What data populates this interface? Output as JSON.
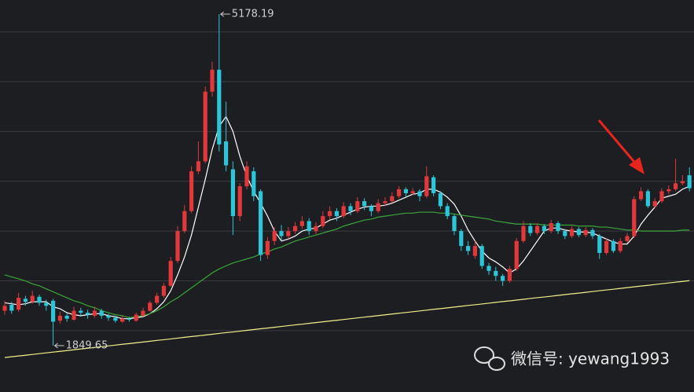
{
  "chart_data": {
    "type": "candlestick",
    "ohlc": [
      [
        2200,
        2300,
        2160,
        2250
      ],
      [
        2260,
        2290,
        2170,
        2200
      ],
      [
        2210,
        2380,
        2190,
        2330
      ],
      [
        2320,
        2350,
        2250,
        2290
      ],
      [
        2290,
        2400,
        2270,
        2350
      ],
      [
        2340,
        2360,
        2250,
        2280
      ],
      [
        2280,
        2310,
        2200,
        2250
      ],
      [
        2300,
        2320,
        1849.65,
        2090
      ],
      [
        2100,
        2190,
        2070,
        2150
      ],
      [
        2150,
        2170,
        2090,
        2120
      ],
      [
        2110,
        2240,
        2100,
        2200
      ],
      [
        2200,
        2230,
        2140,
        2180
      ],
      [
        2180,
        2210,
        2120,
        2160
      ],
      [
        2150,
        2240,
        2130,
        2200
      ],
      [
        2200,
        2220,
        2120,
        2150
      ],
      [
        2150,
        2170,
        2100,
        2130
      ],
      [
        2130,
        2150,
        2080,
        2100
      ],
      [
        2090,
        2150,
        2080,
        2120
      ],
      [
        2120,
        2140,
        2090,
        2110
      ],
      [
        2100,
        2180,
        2090,
        2160
      ],
      [
        2150,
        2230,
        2140,
        2200
      ],
      [
        2200,
        2300,
        2190,
        2280
      ],
      [
        2280,
        2380,
        2260,
        2350
      ],
      [
        2350,
        2480,
        2330,
        2450
      ],
      [
        2450,
        2740,
        2440,
        2700
      ],
      [
        2700,
        3050,
        2680,
        3000
      ],
      [
        3000,
        3260,
        2980,
        3200
      ],
      [
        3200,
        3650,
        3180,
        3600
      ],
      [
        3600,
        3900,
        3570,
        3700
      ],
      [
        3700,
        4450,
        3680,
        4400
      ],
      [
        4400,
        4700,
        4350,
        4620
      ],
      [
        4620,
        5178.19,
        3800,
        3870
      ],
      [
        3900,
        4300,
        3600,
        3660
      ],
      [
        3620,
        3700,
        2960,
        3150
      ],
      [
        3150,
        3480,
        3100,
        3450
      ],
      [
        3450,
        3700,
        3420,
        3650
      ],
      [
        3600,
        3640,
        3300,
        3350
      ],
      [
        3400,
        3420,
        2700,
        2760
      ],
      [
        2760,
        2940,
        2720,
        2900
      ],
      [
        2900,
        3040,
        2860,
        3000
      ],
      [
        3000,
        3060,
        2900,
        2950
      ],
      [
        2950,
        3040,
        2920,
        3000
      ],
      [
        3000,
        3090,
        2970,
        3050
      ],
      [
        3050,
        3150,
        3020,
        3100
      ],
      [
        3100,
        3130,
        2960,
        3000
      ],
      [
        3000,
        3090,
        2970,
        3050
      ],
      [
        3050,
        3200,
        3030,
        3150
      ],
      [
        3150,
        3250,
        3120,
        3200
      ],
      [
        3200,
        3230,
        3100,
        3150
      ],
      [
        3150,
        3290,
        3130,
        3250
      ],
      [
        3250,
        3280,
        3160,
        3200
      ],
      [
        3200,
        3340,
        3180,
        3300
      ],
      [
        3300,
        3330,
        3210,
        3250
      ],
      [
        3250,
        3270,
        3150,
        3200
      ],
      [
        3200,
        3320,
        3180,
        3280
      ],
      [
        3280,
        3340,
        3250,
        3300
      ],
      [
        3300,
        3390,
        3280,
        3350
      ],
      [
        3350,
        3450,
        3330,
        3420
      ],
      [
        3420,
        3440,
        3350,
        3380
      ],
      [
        3380,
        3430,
        3360,
        3400
      ],
      [
        3400,
        3420,
        3300,
        3350
      ],
      [
        3350,
        3650,
        3330,
        3550
      ],
      [
        3540,
        3560,
        3350,
        3380
      ],
      [
        3380,
        3400,
        3220,
        3250
      ],
      [
        3250,
        3280,
        3120,
        3150
      ],
      [
        3150,
        3170,
        2960,
        3000
      ],
      [
        3000,
        3020,
        2800,
        2850
      ],
      [
        2850,
        2900,
        2760,
        2800
      ],
      [
        2750,
        2900,
        2720,
        2850
      ],
      [
        2850,
        2870,
        2620,
        2650
      ],
      [
        2650,
        2680,
        2560,
        2600
      ],
      [
        2600,
        2640,
        2500,
        2550
      ],
      [
        2550,
        2570,
        2450,
        2500
      ],
      [
        2500,
        2650,
        2480,
        2620
      ],
      [
        2620,
        2930,
        2600,
        2900
      ],
      [
        2900,
        3100,
        2880,
        3050
      ],
      [
        3050,
        3080,
        2950,
        2980
      ],
      [
        2980,
        3080,
        2960,
        3050
      ],
      [
        3050,
        3070,
        2970,
        3000
      ],
      [
        3000,
        3110,
        2980,
        3080
      ],
      [
        3080,
        3100,
        2970,
        3000
      ],
      [
        3000,
        3020,
        2920,
        2950
      ],
      [
        2950,
        3050,
        2930,
        3020
      ],
      [
        3020,
        3040,
        2940,
        2960
      ],
      [
        2960,
        3040,
        2940,
        3010
      ],
      [
        3010,
        3030,
        2920,
        2950
      ],
      [
        2950,
        2970,
        2720,
        2780
      ],
      [
        2780,
        2930,
        2760,
        2900
      ],
      [
        2900,
        2920,
        2780,
        2800
      ],
      [
        2800,
        2930,
        2780,
        2900
      ],
      [
        2900,
        2980,
        2880,
        2950
      ],
      [
        2950,
        3350,
        2930,
        3320
      ],
      [
        3320,
        3440,
        3300,
        3400
      ],
      [
        3400,
        3420,
        3230,
        3250
      ],
      [
        3250,
        3330,
        3230,
        3300
      ],
      [
        3300,
        3430,
        3280,
        3400
      ],
      [
        3400,
        3460,
        3370,
        3420
      ],
      [
        3420,
        3727,
        3400,
        3480
      ],
      [
        3480,
        3560,
        3460,
        3500
      ],
      [
        3560,
        3640,
        3400,
        3430
      ]
    ],
    "up_color": "#e0383b",
    "down_color": "#2cc6d8",
    "lines": [
      {
        "color": "#ffffff",
        "values": [
          2280,
          2270,
          2260,
          2270,
          2290,
          2290,
          2290,
          2240,
          2220,
          2180,
          2160,
          2150,
          2160,
          2170,
          2170,
          2150,
          2140,
          2120,
          2120,
          2130,
          2140,
          2170,
          2220,
          2290,
          2400,
          2560,
          2740,
          2960,
          3240,
          3520,
          3820,
          4050,
          4150,
          4000,
          3750,
          3550,
          3400,
          3280,
          3150,
          3000,
          2900,
          2920,
          2950,
          3000,
          3020,
          3030,
          3070,
          3110,
          3130,
          3160,
          3190,
          3220,
          3240,
          3250,
          3250,
          3260,
          3280,
          3310,
          3340,
          3370,
          3380,
          3420,
          3420,
          3390,
          3340,
          3270,
          3150,
          3010,
          2900,
          2800,
          2730,
          2690,
          2640,
          2580,
          2620,
          2700,
          2800,
          2900,
          3000,
          3030,
          3030,
          3010,
          3000,
          2990,
          2990,
          2980,
          2950,
          2920,
          2890,
          2870,
          2870,
          2950,
          3070,
          3160,
          3240,
          3330,
          3350,
          3370,
          3420,
          3450
        ]
      },
      {
        "color": "#3aa63a",
        "values": [
          2560,
          2540,
          2520,
          2500,
          2470,
          2450,
          2420,
          2390,
          2360,
          2330,
          2300,
          2280,
          2250,
          2230,
          2200,
          2180,
          2160,
          2150,
          2130,
          2140,
          2150,
          2170,
          2200,
          2240,
          2290,
          2330,
          2380,
          2430,
          2480,
          2530,
          2580,
          2620,
          2650,
          2680,
          2700,
          2720,
          2740,
          2770,
          2790,
          2820,
          2840,
          2870,
          2900,
          2920,
          2940,
          2960,
          2980,
          3000,
          3020,
          3050,
          3070,
          3090,
          3110,
          3120,
          3140,
          3150,
          3160,
          3170,
          3180,
          3180,
          3190,
          3190,
          3190,
          3180,
          3180,
          3170,
          3160,
          3150,
          3140,
          3130,
          3120,
          3100,
          3090,
          3080,
          3070,
          3070,
          3070,
          3070,
          3060,
          3060,
          3060,
          3060,
          3060,
          3050,
          3050,
          3050,
          3040,
          3040,
          3030,
          3020,
          3010,
          3010,
          3000,
          3000,
          3000,
          3000,
          3000,
          3000,
          3010,
          3010
        ]
      },
      {
        "color": "#f2f08a",
        "values": [
          1730,
          1738,
          1746,
          1753,
          1761,
          1769,
          1777,
          1785,
          1792,
          1800,
          1808,
          1816,
          1824,
          1831,
          1839,
          1847,
          1855,
          1863,
          1870,
          1878,
          1886,
          1894,
          1902,
          1909,
          1917,
          1925,
          1933,
          1941,
          1948,
          1956,
          1964,
          1972,
          1980,
          1987,
          1995,
          2003,
          2011,
          2019,
          2026,
          2034,
          2042,
          2050,
          2058,
          2065,
          2073,
          2081,
          2089,
          2097,
          2104,
          2112,
          2120,
          2128,
          2136,
          2143,
          2151,
          2159,
          2167,
          2175,
          2182,
          2190,
          2198,
          2206,
          2214,
          2221,
          2229,
          2237,
          2245,
          2253,
          2260,
          2268,
          2276,
          2284,
          2292,
          2299,
          2307,
          2315,
          2323,
          2331,
          2338,
          2346,
          2354,
          2362,
          2370,
          2377,
          2385,
          2393,
          2401,
          2409,
          2416,
          2424,
          2432,
          2440,
          2448,
          2455,
          2463,
          2471,
          2479,
          2487,
          2494,
          2502
        ]
      }
    ],
    "ylim": [
      1384,
      5320
    ],
    "yticks": [
      2000,
      2500,
      3000,
      3500,
      4000,
      4500,
      5000
    ],
    "grid": true,
    "high_marker": 5178.19,
    "low_marker": 1849.65
  },
  "watermark": "微信号: yewang1993"
}
